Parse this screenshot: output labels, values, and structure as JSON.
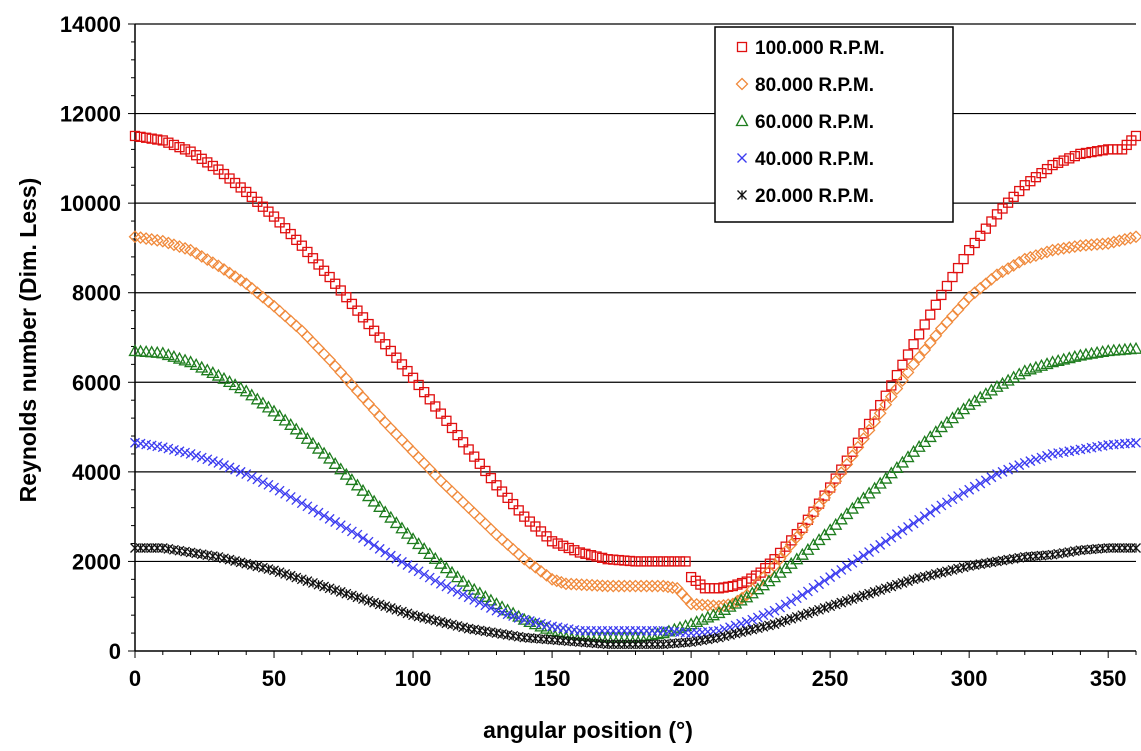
{
  "chart_data": {
    "type": "scatter",
    "title": "",
    "xlabel": "angular position (°)",
    "ylabel": "Reynolds number (Dim. Less)",
    "xlim": [
      0,
      360
    ],
    "ylim": [
      0,
      14000
    ],
    "xticks": [
      0,
      50,
      100,
      150,
      200,
      250,
      300,
      350
    ],
    "yticks": [
      0,
      2000,
      4000,
      6000,
      8000,
      10000,
      12000,
      14000
    ],
    "grid": "horizontal",
    "legend_position": "top-right",
    "series": [
      {
        "name": "100.000 R.P.M.",
        "marker": "square",
        "color": "#e01010",
        "points": [
          [
            0,
            11500
          ],
          [
            10,
            11400
          ],
          [
            20,
            11150
          ],
          [
            30,
            10750
          ],
          [
            40,
            10250
          ],
          [
            50,
            9700
          ],
          [
            60,
            9050
          ],
          [
            70,
            8350
          ],
          [
            80,
            7600
          ],
          [
            90,
            6850
          ],
          [
            100,
            6100
          ],
          [
            110,
            5300
          ],
          [
            120,
            4500
          ],
          [
            130,
            3700
          ],
          [
            140,
            3000
          ],
          [
            150,
            2450
          ],
          [
            160,
            2200
          ],
          [
            170,
            2050
          ],
          [
            180,
            2000
          ],
          [
            190,
            2000
          ],
          [
            198,
            2000
          ],
          [
            200,
            1650
          ],
          [
            205,
            1400
          ],
          [
            210,
            1400
          ],
          [
            215,
            1450
          ],
          [
            220,
            1550
          ],
          [
            225,
            1750
          ],
          [
            230,
            2050
          ],
          [
            240,
            2750
          ],
          [
            250,
            3650
          ],
          [
            260,
            4650
          ],
          [
            270,
            5700
          ],
          [
            280,
            6850
          ],
          [
            290,
            7950
          ],
          [
            300,
            8950
          ],
          [
            310,
            9750
          ],
          [
            320,
            10400
          ],
          [
            330,
            10850
          ],
          [
            340,
            11100
          ],
          [
            350,
            11200
          ],
          [
            355,
            11200
          ],
          [
            360,
            11500
          ]
        ]
      },
      {
        "name": "80.000 R.P.M.",
        "marker": "diamond",
        "color": "#f08a3c",
        "points": [
          [
            0,
            9250
          ],
          [
            10,
            9150
          ],
          [
            20,
            8950
          ],
          [
            30,
            8600
          ],
          [
            40,
            8200
          ],
          [
            50,
            7700
          ],
          [
            60,
            7150
          ],
          [
            70,
            6500
          ],
          [
            80,
            5800
          ],
          [
            90,
            5100
          ],
          [
            100,
            4450
          ],
          [
            110,
            3800
          ],
          [
            120,
            3200
          ],
          [
            130,
            2600
          ],
          [
            140,
            2050
          ],
          [
            150,
            1600
          ],
          [
            155,
            1500
          ],
          [
            170,
            1450
          ],
          [
            190,
            1450
          ],
          [
            195,
            1400
          ],
          [
            200,
            1050
          ],
          [
            210,
            1000
          ],
          [
            215,
            1050
          ],
          [
            220,
            1250
          ],
          [
            230,
            1900
          ],
          [
            240,
            2700
          ],
          [
            250,
            3600
          ],
          [
            260,
            4550
          ],
          [
            270,
            5500
          ],
          [
            280,
            6400
          ],
          [
            290,
            7200
          ],
          [
            300,
            7900
          ],
          [
            310,
            8400
          ],
          [
            320,
            8750
          ],
          [
            330,
            8950
          ],
          [
            340,
            9050
          ],
          [
            350,
            9100
          ],
          [
            360,
            9250
          ]
        ]
      },
      {
        "name": "60.000 R.P.M.",
        "marker": "triangle",
        "color": "#1e7d1e",
        "points": [
          [
            0,
            6700
          ],
          [
            10,
            6650
          ],
          [
            20,
            6450
          ],
          [
            30,
            6150
          ],
          [
            40,
            5800
          ],
          [
            50,
            5350
          ],
          [
            60,
            4850
          ],
          [
            70,
            4300
          ],
          [
            80,
            3700
          ],
          [
            90,
            3100
          ],
          [
            100,
            2500
          ],
          [
            110,
            1950
          ],
          [
            120,
            1450
          ],
          [
            130,
            1050
          ],
          [
            140,
            700
          ],
          [
            150,
            450
          ],
          [
            160,
            350
          ],
          [
            170,
            300
          ],
          [
            180,
            300
          ],
          [
            190,
            400
          ],
          [
            200,
            600
          ],
          [
            210,
            850
          ],
          [
            220,
            1200
          ],
          [
            230,
            1650
          ],
          [
            240,
            2150
          ],
          [
            250,
            2700
          ],
          [
            260,
            3300
          ],
          [
            270,
            3850
          ],
          [
            280,
            4450
          ],
          [
            290,
            5000
          ],
          [
            300,
            5500
          ],
          [
            310,
            5900
          ],
          [
            320,
            6250
          ],
          [
            330,
            6450
          ],
          [
            340,
            6600
          ],
          [
            350,
            6700
          ],
          [
            360,
            6750
          ]
        ]
      },
      {
        "name": "40.000 R.P.M.",
        "marker": "x",
        "color": "#3b3bf0",
        "points": [
          [
            0,
            4650
          ],
          [
            10,
            4550
          ],
          [
            20,
            4400
          ],
          [
            30,
            4200
          ],
          [
            40,
            3950
          ],
          [
            50,
            3650
          ],
          [
            60,
            3300
          ],
          [
            70,
            2950
          ],
          [
            80,
            2600
          ],
          [
            90,
            2200
          ],
          [
            100,
            1850
          ],
          [
            110,
            1500
          ],
          [
            120,
            1200
          ],
          [
            130,
            900
          ],
          [
            140,
            700
          ],
          [
            150,
            550
          ],
          [
            160,
            450
          ],
          [
            170,
            450
          ],
          [
            180,
            450
          ],
          [
            190,
            450
          ],
          [
            200,
            400
          ],
          [
            210,
            450
          ],
          [
            220,
            650
          ],
          [
            230,
            900
          ],
          [
            240,
            1250
          ],
          [
            250,
            1650
          ],
          [
            260,
            2050
          ],
          [
            270,
            2450
          ],
          [
            280,
            2850
          ],
          [
            290,
            3250
          ],
          [
            300,
            3600
          ],
          [
            310,
            3950
          ],
          [
            320,
            4200
          ],
          [
            330,
            4400
          ],
          [
            340,
            4500
          ],
          [
            350,
            4600
          ],
          [
            360,
            4650
          ]
        ]
      },
      {
        "name": "20.000 R.P.M.",
        "marker": "asterisk",
        "color": "#111111",
        "points": [
          [
            0,
            2300
          ],
          [
            10,
            2300
          ],
          [
            20,
            2200
          ],
          [
            30,
            2100
          ],
          [
            40,
            1950
          ],
          [
            50,
            1800
          ],
          [
            60,
            1600
          ],
          [
            70,
            1400
          ],
          [
            80,
            1200
          ],
          [
            90,
            1000
          ],
          [
            100,
            800
          ],
          [
            110,
            650
          ],
          [
            120,
            500
          ],
          [
            130,
            400
          ],
          [
            140,
            300
          ],
          [
            150,
            250
          ],
          [
            160,
            200
          ],
          [
            170,
            150
          ],
          [
            180,
            150
          ],
          [
            190,
            150
          ],
          [
            200,
            200
          ],
          [
            210,
            300
          ],
          [
            220,
            450
          ],
          [
            230,
            600
          ],
          [
            240,
            800
          ],
          [
            250,
            1000
          ],
          [
            260,
            1200
          ],
          [
            270,
            1400
          ],
          [
            280,
            1600
          ],
          [
            290,
            1750
          ],
          [
            300,
            1900
          ],
          [
            310,
            2000
          ],
          [
            320,
            2100
          ],
          [
            330,
            2150
          ],
          [
            340,
            2250
          ],
          [
            350,
            2300
          ],
          [
            360,
            2300
          ]
        ]
      }
    ]
  }
}
